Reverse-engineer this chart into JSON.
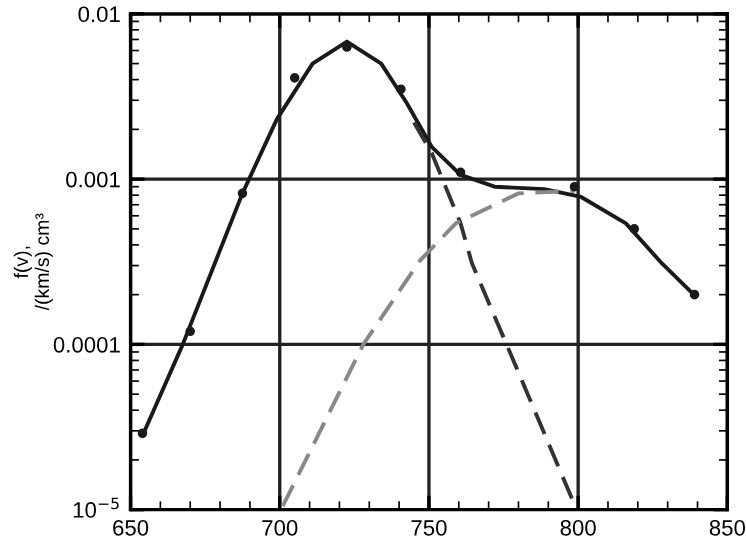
{
  "chart_data": {
    "type": "line",
    "ylabel": "f(v),\n/(km/s) cm³",
    "log": "y",
    "grid": true,
    "xlim": [
      650,
      850
    ],
    "xticks": [
      650,
      700,
      750,
      800,
      850
    ],
    "ylim": [
      1e-05,
      0.01
    ],
    "yticks": [
      {
        "value": 0.01,
        "label": "0.01"
      },
      {
        "value": 0.001,
        "label": "0.001"
      },
      {
        "value": 0.0001,
        "label": "0.0001"
      },
      {
        "value": 1e-05,
        "label": "10$^{−5}$"
      }
    ],
    "series": [
      {
        "color": "#1a1a1a",
        "line_style": "solid",
        "marker": "none",
        "x": [
          654,
          667.5,
          687.5,
          699,
          711,
          722.5,
          734,
          742.5,
          751,
          760.6,
          772,
          788.7,
          801,
          816,
          828,
          839.4
        ],
        "values": [
          2.8e-05,
          0.0001,
          0.00082,
          0.0023,
          0.005,
          0.0068,
          0.005,
          0.0029,
          0.00156,
          0.00106,
          0.0009,
          0.00087,
          0.00078,
          0.00054,
          0.00031,
          0.000195
        ]
      },
      {
        "type": "scatter",
        "color": "#1a1a1a",
        "marker": "circle",
        "x": [
          654,
          670,
          687.5,
          705,
          722.5,
          740.6,
          760.6,
          798.8,
          818.8,
          839
        ],
        "values": [
          2.9e-05,
          0.00012,
          0.00082,
          0.0041,
          0.0063,
          0.0035,
          0.0011,
          0.0009,
          0.0005,
          0.0002
        ]
      },
      {
        "color": "#333333",
        "line_style": "dashed",
        "marker": "none",
        "x": [
          745,
          751,
          760.6,
          764.4,
          776,
          799
        ],
        "values": [
          0.0022,
          0.00143,
          0.00054,
          0.00031,
          0.0001,
          1.05e-05
        ]
      },
      {
        "color": "#888888",
        "line_style": "dashed",
        "marker": "none",
        "x": [
          701,
          728,
          746.9,
          759,
          780,
          798.8
        ],
        "values": [
          1.05e-05,
          0.0001,
          0.00032,
          0.00054,
          0.00082,
          0.00085
        ]
      }
    ]
  }
}
